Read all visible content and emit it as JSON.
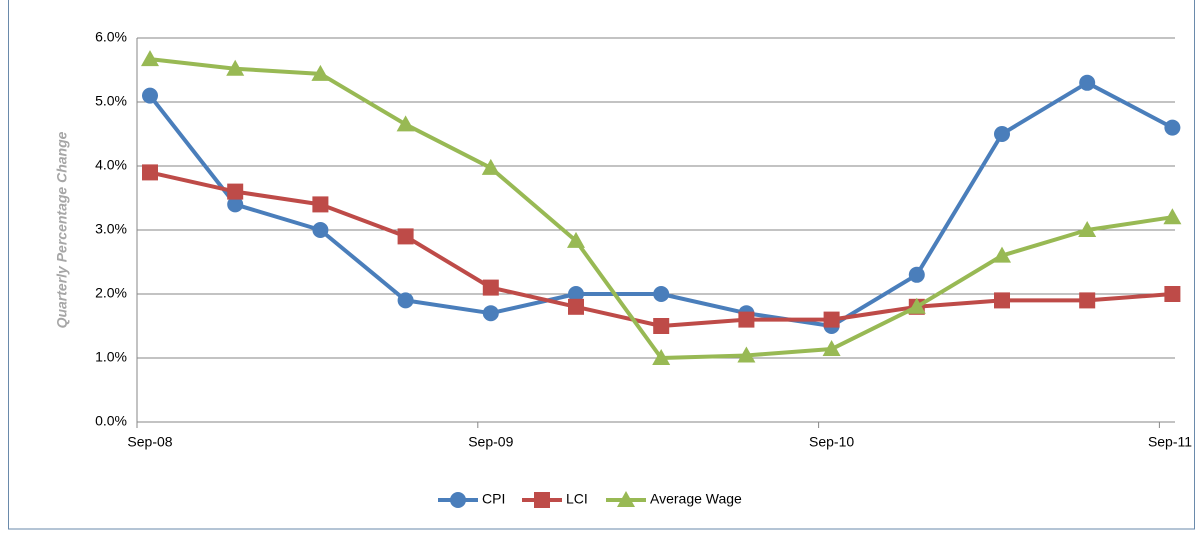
{
  "chart_data": {
    "type": "line",
    "y_label": "Quarterly Percentage Change",
    "categories": [
      "Sep-08",
      null,
      null,
      null,
      "Sep-09",
      null,
      null,
      null,
      "Sep-10",
      null,
      null,
      null,
      "Sep-11"
    ],
    "series": [
      {
        "name": "CPI",
        "color": "#4a7ebb",
        "marker": "circle",
        "values": [
          5.1,
          3.4,
          3.0,
          1.9,
          1.7,
          2.0,
          2.0,
          1.7,
          1.5,
          2.3,
          4.5,
          5.3,
          4.6
        ]
      },
      {
        "name": "LCI",
        "color": "#be4b48",
        "marker": "square",
        "values": [
          3.9,
          3.6,
          3.4,
          2.9,
          2.1,
          1.8,
          1.5,
          1.6,
          1.6,
          1.8,
          1.9,
          1.9,
          2.0
        ]
      },
      {
        "name": "Average Wage",
        "color": "#98b954",
        "marker": "triangle",
        "values": [
          5.67,
          5.52,
          5.44,
          4.65,
          3.97,
          2.83,
          1.0,
          1.04,
          1.14,
          1.8,
          2.6,
          3.0,
          3.2
        ]
      }
    ],
    "ylim": [
      0,
      6
    ],
    "yticks": [
      {
        "value": 0,
        "label": "0.0%"
      },
      {
        "value": 1,
        "label": "1.0%"
      },
      {
        "value": 2,
        "label": "2.0%"
      },
      {
        "value": 3,
        "label": "3.0%"
      },
      {
        "value": 4,
        "label": "4.0%"
      },
      {
        "value": 5,
        "label": "5.0%"
      },
      {
        "value": 6,
        "label": "6.0%"
      }
    ],
    "grid": true,
    "legend": "bottom"
  }
}
